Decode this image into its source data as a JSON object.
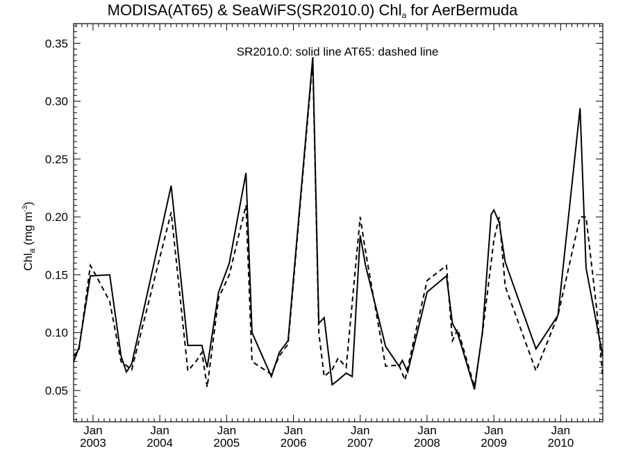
{
  "chart_data": {
    "type": "line",
    "title": {
      "pre": "MODISA(AT65) & SeaWiFS(SR2010.0)  Chl",
      "sub": "a",
      "post": " for AerBermuda"
    },
    "annotation": "SR2010.0: solid line   AT65: dashed line",
    "ylabel": {
      "pre": "Chl",
      "sub": "a",
      "mid": " (mg m",
      "sup": "-3",
      "post": ")"
    },
    "ylim": [
      0.023,
      0.367
    ],
    "yticks": [
      0.05,
      0.1,
      0.15,
      0.2,
      0.25,
      0.3,
      0.35
    ],
    "ytick_labels": [
      "0.05",
      "0.10",
      "0.15",
      "0.20",
      "0.25",
      "0.30",
      "0.35"
    ],
    "xlim": [
      2002.71,
      2010.63
    ],
    "xticks": [
      2003,
      2004,
      2005,
      2006,
      2007,
      2008,
      2009,
      2010
    ],
    "xtick_month": "Jan",
    "xtick_years": [
      "2003",
      "2004",
      "2005",
      "2006",
      "2007",
      "2008",
      "2009",
      "2010"
    ],
    "grid": false,
    "series": [
      {
        "name": "SR2010.0",
        "style": "solid",
        "color": "#000000",
        "x": [
          2002.71,
          2002.79,
          2002.96,
          2003.25,
          2003.42,
          2003.5,
          2003.58,
          2004.17,
          2004.42,
          2004.63,
          2004.71,
          2004.88,
          2005.04,
          2005.29,
          2005.38,
          2005.67,
          2005.79,
          2005.92,
          2006.29,
          2006.38,
          2006.46,
          2006.58,
          2006.67,
          2006.79,
          2006.88,
          2007.0,
          2007.08,
          2007.38,
          2007.58,
          2007.63,
          2007.71,
          2008.0,
          2008.29,
          2008.38,
          2008.46,
          2008.71,
          2008.83,
          2008.96,
          2009.0,
          2009.08,
          2009.17,
          2009.63,
          2009.96,
          2010.29,
          2010.38,
          2010.54,
          2010.63
        ],
        "y": [
          0.075,
          0.087,
          0.149,
          0.15,
          0.08,
          0.066,
          0.073,
          0.227,
          0.089,
          0.089,
          0.07,
          0.135,
          0.16,
          0.238,
          0.1,
          0.062,
          0.083,
          0.093,
          0.338,
          0.108,
          0.113,
          0.055,
          0.059,
          0.065,
          0.062,
          0.184,
          0.158,
          0.088,
          0.071,
          0.076,
          0.066,
          0.135,
          0.149,
          0.108,
          0.099,
          0.051,
          0.101,
          0.202,
          0.206,
          0.195,
          0.161,
          0.086,
          0.115,
          0.294,
          0.156,
          0.107,
          0.08
        ]
      },
      {
        "name": "AT65",
        "style": "dashed",
        "color": "#000000",
        "x": [
          2002.71,
          2002.79,
          2002.96,
          2003.04,
          2003.25,
          2003.42,
          2003.58,
          2004.17,
          2004.42,
          2004.54,
          2004.63,
          2004.71,
          2004.88,
          2005.04,
          2005.29,
          2005.38,
          2005.67,
          2005.79,
          2005.92,
          2006.29,
          2006.38,
          2006.46,
          2006.58,
          2006.67,
          2006.79,
          2007.0,
          2007.08,
          2007.38,
          2007.58,
          2007.67,
          2008.0,
          2008.29,
          2008.38,
          2008.46,
          2008.71,
          2008.83,
          2009.0,
          2009.08,
          2009.17,
          2009.63,
          2009.96,
          2010.29,
          2010.38,
          2010.54,
          2010.63
        ],
        "y": [
          0.08,
          0.085,
          0.158,
          0.15,
          0.127,
          0.075,
          0.068,
          0.204,
          0.067,
          0.075,
          0.083,
          0.053,
          0.13,
          0.15,
          0.21,
          0.075,
          0.064,
          0.08,
          0.09,
          0.335,
          0.1,
          0.062,
          0.068,
          0.078,
          0.07,
          0.2,
          0.17,
          0.071,
          0.072,
          0.059,
          0.145,
          0.158,
          0.093,
          0.103,
          0.053,
          0.1,
          0.18,
          0.2,
          0.14,
          0.067,
          0.115,
          0.2,
          0.2,
          0.12,
          0.062
        ]
      }
    ]
  }
}
